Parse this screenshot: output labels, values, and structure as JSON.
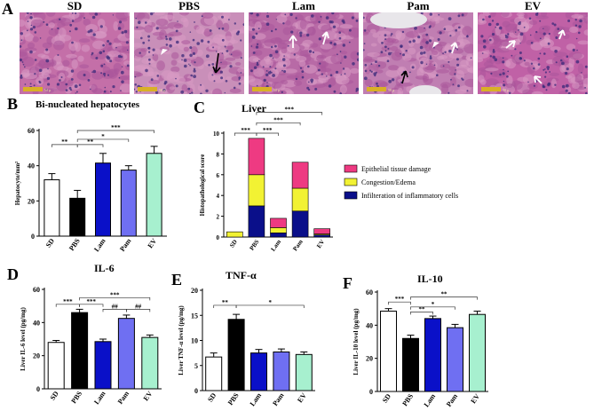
{
  "panel_a": {
    "letter": "A",
    "scale_label": "50 µ",
    "tiles": [
      {
        "title": "SD",
        "color_base": "#c46fa8"
      },
      {
        "title": "PBS",
        "color_base": "#c98fb9"
      },
      {
        "title": "Lam",
        "color_base": "#b86aa6"
      },
      {
        "title": "Pam",
        "color_base": "#c07eb2"
      },
      {
        "title": "EV",
        "color_base": "#c061a6"
      }
    ]
  },
  "colors": {
    "SD": "#ffffff",
    "PBS": "#000000",
    "Lam": "#0a10c8",
    "Pam": "#6f6ff2",
    "EV": "#a7f0cf"
  },
  "chart_data": [
    {
      "id": "B",
      "type": "bar",
      "title": "Bi-nucleated hepatocytes",
      "ylabel": "Hepatocyte/mm²",
      "categories": [
        "SD",
        "PBS",
        "Lam",
        "Pam",
        "EV"
      ],
      "values": [
        32,
        21.5,
        41.5,
        37.5,
        47
      ],
      "errors": [
        3.5,
        4.5,
        5.5,
        2.5,
        4
      ],
      "ylim": [
        0,
        60
      ],
      "yticks": [
        0,
        20,
        40,
        60
      ],
      "annotations": [
        {
          "from": 0,
          "to": 1,
          "label": "**",
          "y": 52
        },
        {
          "from": 1,
          "to": 2,
          "label": "**",
          "y": 52
        },
        {
          "from": 1,
          "to": 3,
          "label": "*",
          "y": 55
        },
        {
          "from": 1,
          "to": 4,
          "label": "***",
          "y": 60
        }
      ]
    },
    {
      "id": "C",
      "type": "bar",
      "stacked": true,
      "title": "Liver",
      "ylabel": "Histopathological score",
      "categories": [
        "SD",
        "PBS",
        "Lam",
        "Pam",
        "EV"
      ],
      "series": [
        {
          "name": "Infilteration of inflammatory cells",
          "color": "#0a0f8a",
          "values": [
            0,
            3,
            0.4,
            2.5,
            0.2
          ]
        },
        {
          "name": "Congestion/Edema",
          "color": "#f2f233",
          "values": [
            0.5,
            3,
            0.5,
            2.2,
            0.1
          ]
        },
        {
          "name": "Epithelial tissue damage",
          "color": "#ee3a82",
          "values": [
            0,
            3.5,
            0.9,
            2.5,
            0.5
          ]
        }
      ],
      "legend_order": [
        "Epithelial tissue damage",
        "Congestion/Edema",
        "Infilteration of inflammatory cells"
      ],
      "ylim": [
        0,
        10
      ],
      "yticks": [
        0,
        2,
        4,
        6,
        8,
        10
      ],
      "annotations": [
        {
          "from": 0,
          "to": 1,
          "label": "***",
          "y": 10
        },
        {
          "from": 1,
          "to": 2,
          "label": "***",
          "y": 10
        },
        {
          "from": 1,
          "to": 3,
          "label": "***",
          "y": 11
        },
        {
          "from": 1,
          "to": 4,
          "label": "***",
          "y": 12
        }
      ]
    },
    {
      "id": "D",
      "type": "bar",
      "title": "IL-6",
      "ylabel": "Liver IL-6 level (pg/mg)",
      "categories": [
        "SD",
        "PBS",
        "Lam",
        "Pam",
        "EV"
      ],
      "values": [
        28,
        46,
        28.5,
        42.5,
        31
      ],
      "errors": [
        1.2,
        2,
        1.5,
        2,
        1.5
      ],
      "ylim": [
        0,
        60
      ],
      "yticks": [
        0,
        20,
        40,
        60
      ],
      "annotations": [
        {
          "from": 0,
          "to": 1,
          "label": "***",
          "y": 51
        },
        {
          "from": 1,
          "to": 2,
          "label": "***",
          "y": 51
        },
        {
          "from": 2,
          "to": 3,
          "label": "##",
          "y": 48
        },
        {
          "from": 3,
          "to": 4,
          "label": "##",
          "y": 48
        },
        {
          "from": 1,
          "to": 4,
          "label": "***",
          "y": 55
        }
      ]
    },
    {
      "id": "E",
      "type": "bar",
      "title": "TNF-α",
      "ylabel": "Liver TNF-α level (pg/mg)",
      "categories": [
        "SD",
        "PBS",
        "Lam",
        "Pam",
        "EV"
      ],
      "values": [
        6.7,
        14.2,
        7.5,
        7.7,
        7.2
      ],
      "errors": [
        0.8,
        1,
        0.7,
        0.6,
        0.5
      ],
      "ylim": [
        0,
        20
      ],
      "yticks": [
        0,
        5,
        10,
        15,
        20
      ],
      "annotations": [
        {
          "from": 0,
          "to": 1,
          "label": "**",
          "y": 17
        },
        {
          "from": 1,
          "to": 4,
          "label": "*",
          "y": 17
        }
      ]
    },
    {
      "id": "F",
      "type": "bar",
      "title": "IL-10",
      "ylabel": "Liver IL-10 level (pg/mg)",
      "categories": [
        "SD",
        "PBS",
        "Lam",
        "Pam",
        "EV"
      ],
      "values": [
        48.5,
        32,
        44,
        38.5,
        46.5
      ],
      "errors": [
        1.5,
        2,
        1.5,
        2,
        2
      ],
      "ylim": [
        0,
        60
      ],
      "yticks": [
        0,
        20,
        40,
        60
      ],
      "annotations": [
        {
          "from": 0,
          "to": 1,
          "label": "***",
          "y": 54
        },
        {
          "from": 1,
          "to": 2,
          "label": "**",
          "y": 48
        },
        {
          "from": 1,
          "to": 3,
          "label": "*",
          "y": 51
        },
        {
          "from": 1,
          "to": 4,
          "label": "**",
          "y": 57
        }
      ]
    }
  ]
}
